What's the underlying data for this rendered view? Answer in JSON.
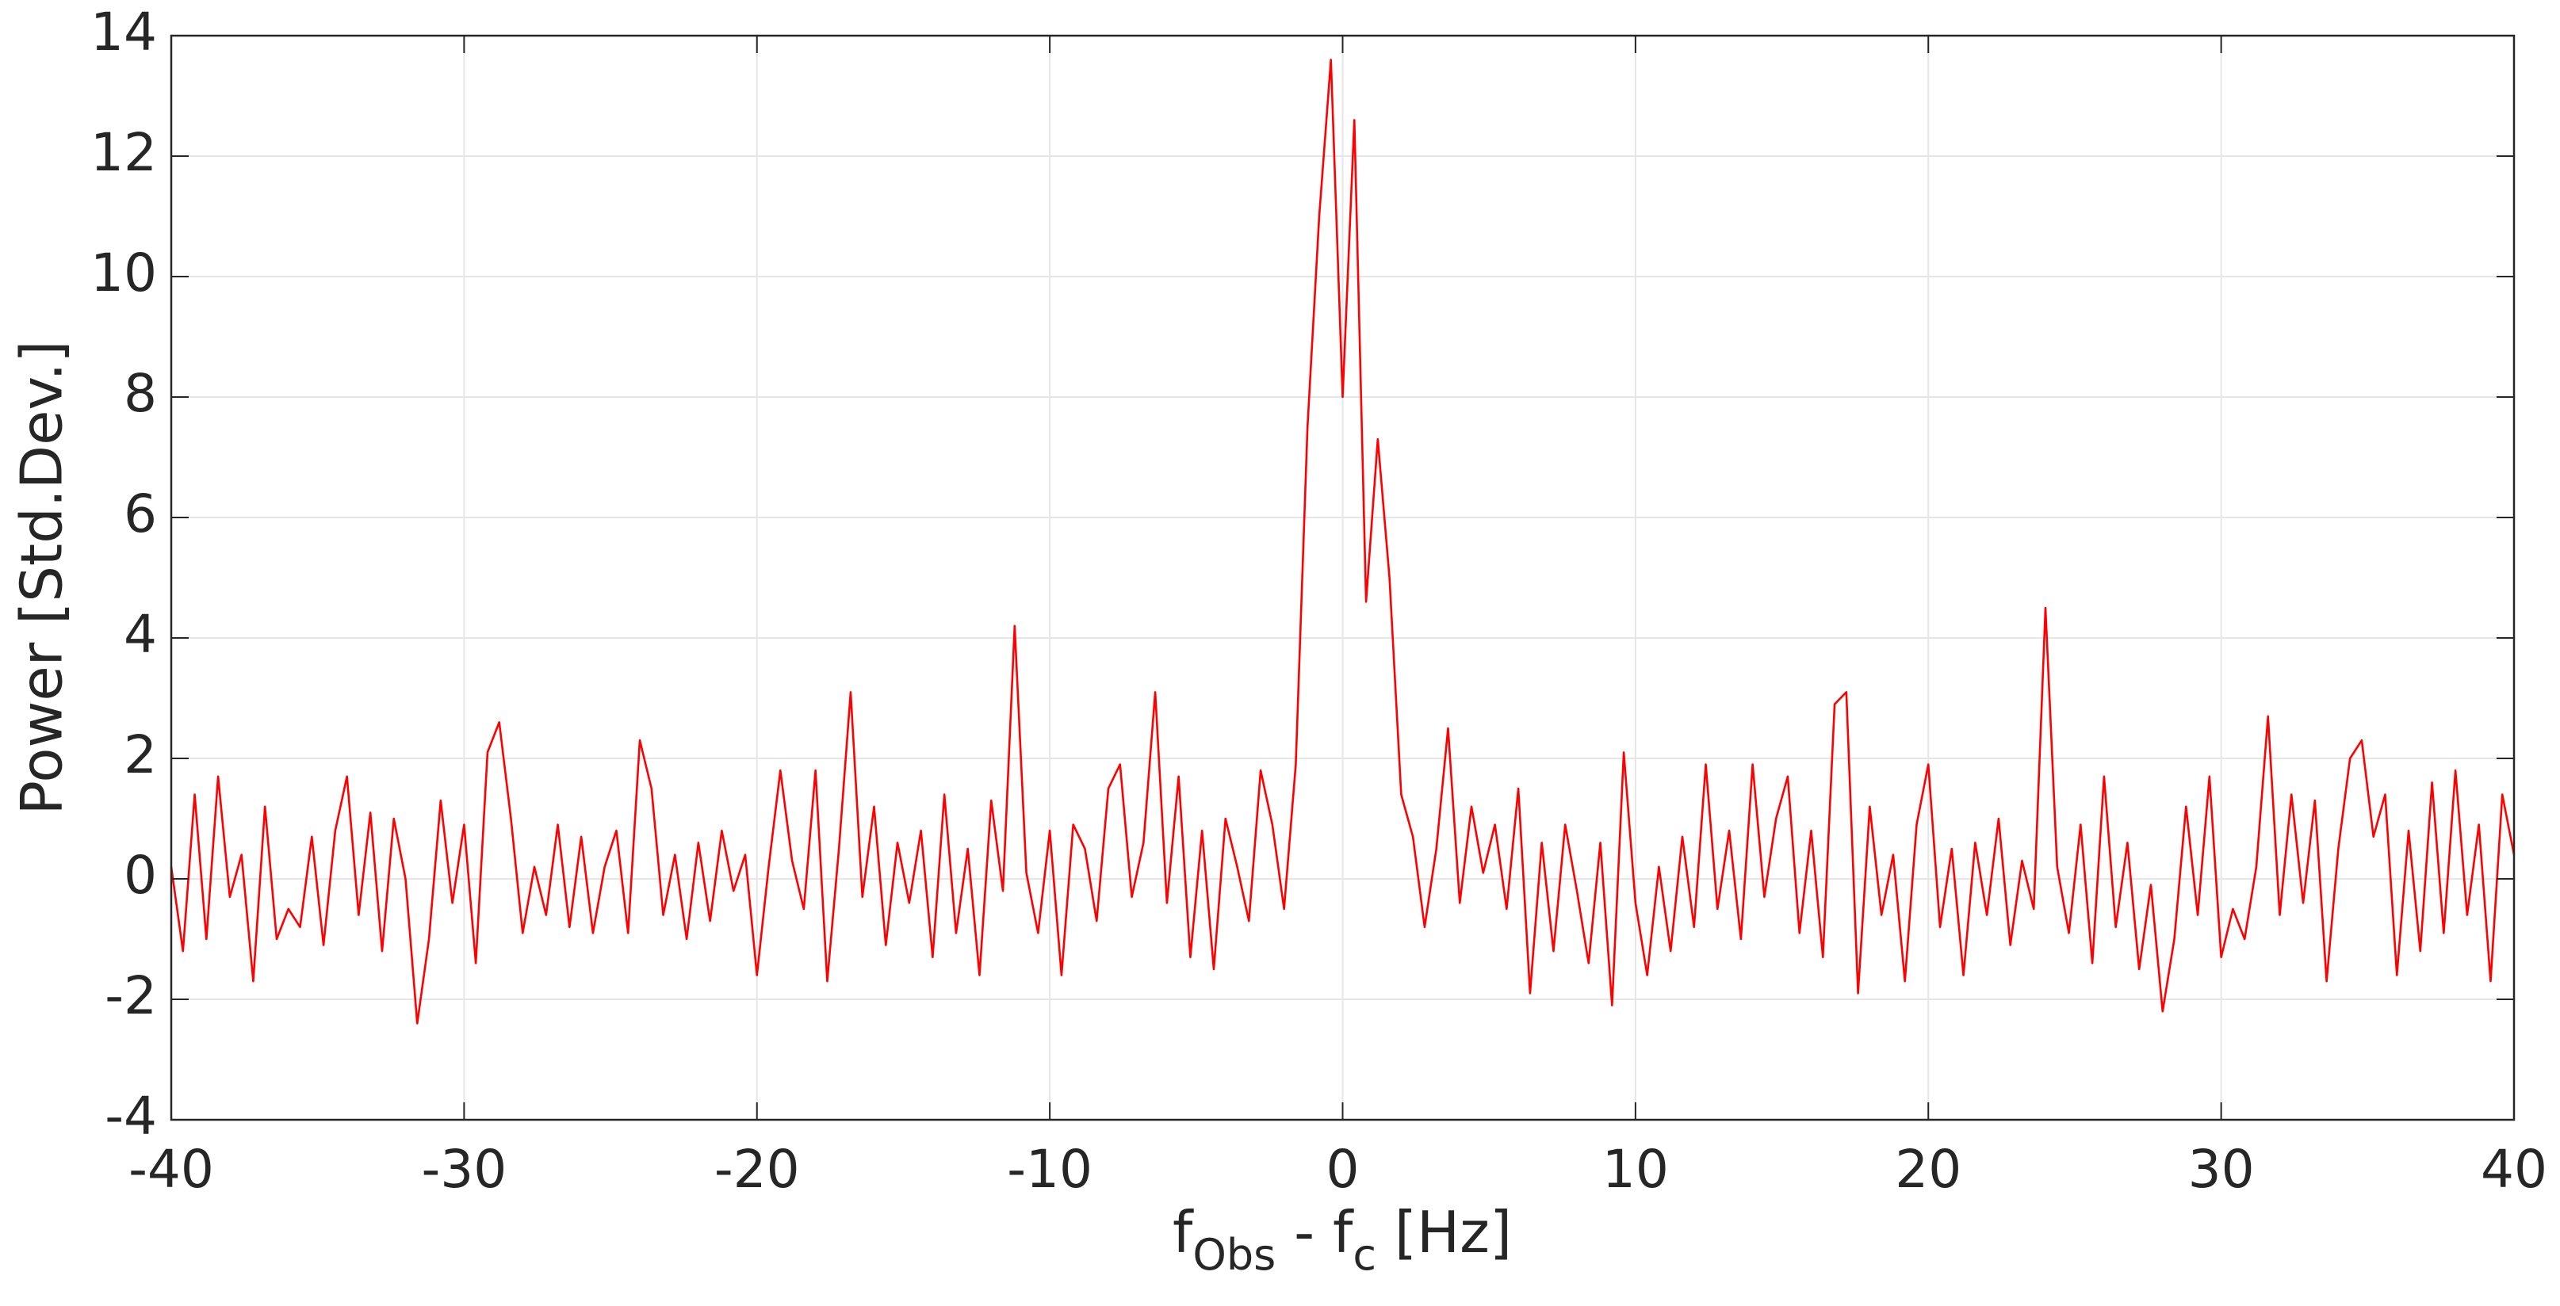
{
  "chart_data": {
    "type": "line",
    "ylabel": "Power [Std.Dev.]",
    "xlabel": [
      "f",
      "Obs",
      " - f",
      "c",
      " [Hz]"
    ],
    "xlim": [
      -40,
      40
    ],
    "xticks": [
      -40,
      -30,
      -20,
      -10,
      0,
      10,
      20,
      30,
      40
    ],
    "ylim": [
      -4,
      14
    ],
    "yticks": [
      -4,
      -2,
      0,
      2,
      4,
      6,
      8,
      10,
      12,
      14
    ],
    "grid": true,
    "series": [
      {
        "color": "#ff0000",
        "x": [
          -40,
          -39.6,
          -39.2,
          -38.8,
          -38.4,
          -38,
          -37.6,
          -37.2,
          -36.8,
          -36.4,
          -36,
          -35.6,
          -35.2,
          -34.8,
          -34.4,
          -34,
          -33.6,
          -33.2,
          -32.8,
          -32.4,
          -32,
          -31.6,
          -31.2,
          -30.8,
          -30.4,
          -30,
          -29.6,
          -29.2,
          -28.8,
          -28.4,
          -28,
          -27.6,
          -27.2,
          -26.8,
          -26.4,
          -26,
          -25.6,
          -25.2,
          -24.8,
          -24.4,
          -24,
          -23.6,
          -23.2,
          -22.8,
          -22.4,
          -22,
          -21.6,
          -21.2,
          -20.8,
          -20.4,
          -20,
          -19.6,
          -19.2,
          -18.8,
          -18.4,
          -18,
          -17.6,
          -17.2,
          -16.8,
          -16.4,
          -16,
          -15.6,
          -15.2,
          -14.8,
          -14.4,
          -14,
          -13.6,
          -13.2,
          -12.8,
          -12.4,
          -12,
          -11.6,
          -11.2,
          -10.8,
          -10.4,
          -10,
          -9.6,
          -9.2,
          -8.8,
          -8.4,
          -8,
          -7.6,
          -7.2,
          -6.8,
          -6.4,
          -6,
          -5.6,
          -5.2,
          -4.8,
          -4.4,
          -4,
          -3.6,
          -3.2,
          -2.8,
          -2.4,
          -2,
          -1.6,
          -1.2,
          -0.8,
          -0.4,
          0,
          0.4,
          0.8,
          1.2,
          1.6,
          2,
          2.4,
          2.8,
          3.2,
          3.6,
          4,
          4.4,
          4.8,
          5.2,
          5.6,
          6,
          6.4,
          6.8,
          7.2,
          7.6,
          8,
          8.4,
          8.8,
          9.2,
          9.6,
          10,
          10.4,
          10.8,
          11.2,
          11.6,
          12,
          12.4,
          12.8,
          13.2,
          13.6,
          14,
          14.4,
          14.8,
          15.2,
          15.6,
          16,
          16.4,
          16.8,
          17.2,
          17.6,
          18,
          18.4,
          18.8,
          19.2,
          19.6,
          20,
          20.4,
          20.8,
          21.2,
          21.6,
          22,
          22.4,
          22.8,
          23.2,
          23.6,
          24,
          24.4,
          24.8,
          25.2,
          25.6,
          26,
          26.4,
          26.8,
          27.2,
          27.6,
          28,
          28.4,
          28.8,
          29.2,
          29.6,
          30,
          30.4,
          30.8,
          31.2,
          31.6,
          32,
          32.4,
          32.8,
          33.2,
          33.6,
          34,
          34.4,
          34.8,
          35.2,
          35.6,
          36,
          36.4,
          36.8,
          37.2,
          37.6,
          38,
          38.4,
          38.8,
          39.2,
          39.6,
          40
        ],
        "values": [
          0.2,
          -1.2,
          1.4,
          -1.0,
          1.7,
          -0.3,
          0.4,
          -1.7,
          1.2,
          -1.0,
          -0.5,
          -0.8,
          0.7,
          -1.1,
          0.8,
          1.7,
          -0.6,
          1.1,
          -1.2,
          1.0,
          0.0,
          -2.4,
          -1.0,
          1.3,
          -0.4,
          0.9,
          -1.4,
          2.1,
          2.6,
          1.0,
          -0.9,
          0.2,
          -0.6,
          0.9,
          -0.8,
          0.7,
          -0.9,
          0.2,
          0.8,
          -0.9,
          2.3,
          1.5,
          -0.6,
          0.4,
          -1.0,
          0.6,
          -0.7,
          0.8,
          -0.2,
          0.4,
          -1.6,
          0.2,
          1.8,
          0.3,
          -0.5,
          1.8,
          -1.7,
          0.5,
          3.1,
          -0.3,
          1.2,
          -1.1,
          0.6,
          -0.4,
          0.8,
          -1.3,
          1.4,
          -0.9,
          0.5,
          -1.6,
          1.3,
          -0.2,
          4.2,
          0.1,
          -0.9,
          0.8,
          -1.6,
          0.9,
          0.5,
          -0.7,
          1.5,
          1.9,
          -0.3,
          0.6,
          3.1,
          -0.4,
          1.7,
          -1.3,
          0.8,
          -1.5,
          1.0,
          0.2,
          -0.7,
          1.8,
          0.9,
          -0.5,
          1.9,
          7.5,
          11.0,
          13.6,
          8.0,
          12.6,
          4.6,
          7.3,
          5.0,
          1.4,
          0.7,
          -0.8,
          0.5,
          2.5,
          -0.4,
          1.2,
          0.1,
          0.9,
          -0.5,
          1.5,
          -1.9,
          0.6,
          -1.2,
          0.9,
          -0.2,
          -1.4,
          0.6,
          -2.1,
          2.1,
          -0.4,
          -1.6,
          0.2,
          -1.2,
          0.7,
          -0.8,
          1.9,
          -0.5,
          0.8,
          -1.0,
          1.9,
          -0.3,
          1.0,
          1.7,
          -0.9,
          0.8,
          -1.3,
          2.9,
          3.1,
          -1.9,
          1.2,
          -0.6,
          0.4,
          -1.7,
          0.9,
          1.9,
          -0.8,
          0.5,
          -1.6,
          0.6,
          -0.6,
          1.0,
          -1.1,
          0.3,
          -0.5,
          4.5,
          0.2,
          -0.9,
          0.9,
          -1.4,
          1.7,
          -0.8,
          0.6,
          -1.5,
          -0.1,
          -2.2,
          -1.0,
          1.2,
          -0.6,
          1.7,
          -1.3,
          -0.5,
          -1.0,
          0.2,
          2.7,
          -0.6,
          1.4,
          -0.4,
          1.3,
          -1.7,
          0.5,
          2.0,
          2.3,
          0.7,
          1.4,
          -1.6,
          0.8,
          -1.2,
          1.6,
          -0.9,
          1.8,
          -0.6,
          0.9,
          -1.7,
          1.4,
          0.4
        ]
      }
    ]
  }
}
